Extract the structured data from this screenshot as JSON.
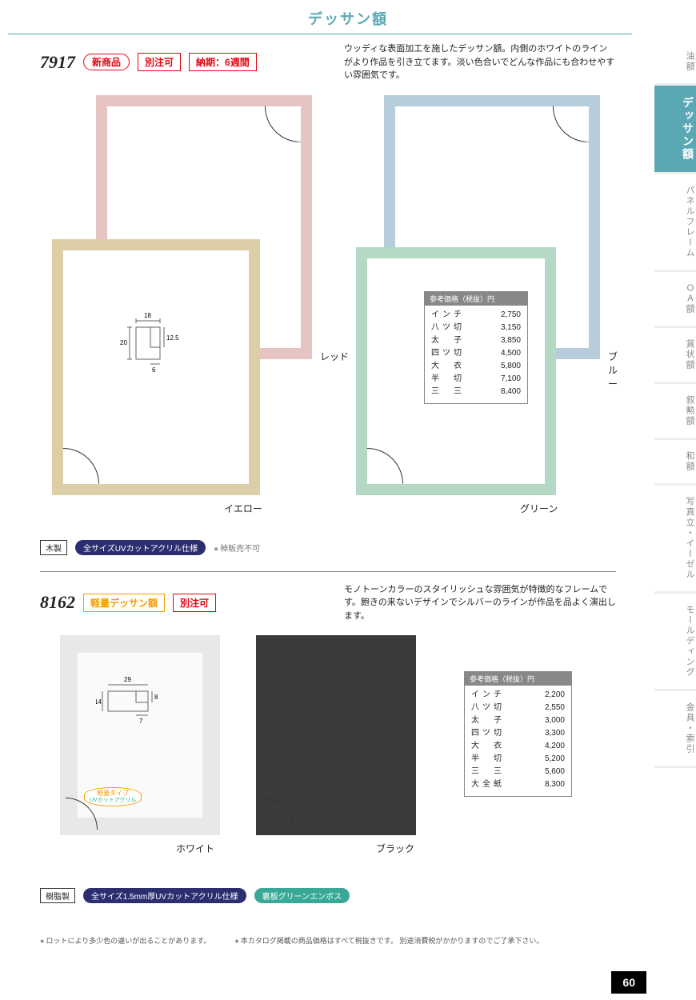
{
  "page": {
    "title": "デッサン額",
    "number": "60"
  },
  "sideTabs": [
    {
      "label": "油額",
      "active": false
    },
    {
      "label": "デッサン額",
      "active": true
    },
    {
      "label": "パネルフレーム",
      "active": false
    },
    {
      "label": "ＯＡ額",
      "active": false
    },
    {
      "label": "賞状額",
      "active": false
    },
    {
      "label": "叙勲額",
      "active": false
    },
    {
      "label": "和額",
      "active": false
    },
    {
      "label": "写真立・イーゼル",
      "active": false
    },
    {
      "label": "モールディング",
      "active": false
    },
    {
      "label": "金具・索引",
      "active": false
    }
  ],
  "product1": {
    "number": "7917",
    "badges": {
      "new": "新商品",
      "custom": "別注可",
      "leadtime": "納期：6週間"
    },
    "description": "ウッディな表面加工を施したデッサン額。内側のホワイトのラインがより作品を引き立てます。淡い色合いでどんな作品にも合わせやすい雰囲気です。",
    "frameColors": {
      "red": {
        "label": "レッド",
        "hex": "#e6c4c1",
        "border": 14
      },
      "yellow": {
        "label": "イエロー",
        "hex": "#dccfa8",
        "border": 14
      },
      "blue": {
        "label": "ブルー",
        "hex": "#b8cddb",
        "border": 14
      },
      "green": {
        "label": "グリーン",
        "hex": "#b3d9c4",
        "border": 14
      }
    },
    "profile": {
      "w": 18,
      "h": 20,
      "rabbet_w": 6,
      "rabbet_h": 12.5
    },
    "priceHeader": "参考価格（税抜）円",
    "prices": [
      {
        "size": "インチ",
        "price": "2,750"
      },
      {
        "size": "八ツ切",
        "price": "3,150"
      },
      {
        "size": "太　子",
        "price": "3,850"
      },
      {
        "size": "四ツ切",
        "price": "4,500"
      },
      {
        "size": "大　衣",
        "price": "5,800"
      },
      {
        "size": "半　切",
        "price": "7,100"
      },
      {
        "size": "三　三",
        "price": "8,400"
      }
    ],
    "specs": {
      "material": "木製",
      "acrylic": "全サイズUVカットアクリル仕様",
      "note": "棹販売不可"
    }
  },
  "product2": {
    "number": "8162",
    "badges": {
      "lightweight": "軽量デッサン額",
      "custom": "別注可"
    },
    "description": "モノトーンカラーのスタイリッシュな雰囲気が特徴的なフレームです。飽きの来ないデザインでシルバーのラインが作品を品よく演出します。",
    "frameColors": {
      "white": {
        "label": "ホワイト",
        "hex": "#e8e8e8",
        "border": 22
      },
      "black": {
        "label": "ブラック",
        "hex": "#3a3a3a",
        "border": 22
      }
    },
    "profile": {
      "w": 29,
      "h": 14,
      "rabbet_w": 7,
      "rabbet_h": 8
    },
    "lwBadge": {
      "l1": "軽量タイプ",
      "l2": "UVカットアクリル"
    },
    "priceHeader": "参考価格（税抜）円",
    "prices": [
      {
        "size": "インチ",
        "price": "2,200"
      },
      {
        "size": "八ツ切",
        "price": "2,550"
      },
      {
        "size": "太　子",
        "price": "3,000"
      },
      {
        "size": "四ツ切",
        "price": "3,300"
      },
      {
        "size": "大　衣",
        "price": "4,200"
      },
      {
        "size": "半　切",
        "price": "5,200"
      },
      {
        "size": "三　三",
        "price": "5,600"
      },
      {
        "size": "大全紙",
        "price": "8,300"
      }
    ],
    "specs": {
      "material": "樹脂製",
      "acrylic": "全サイズ1.5mm厚UVカットアクリル仕様",
      "back": "裏板グリーンエンボス"
    }
  },
  "footerNotes": [
    "ロットにより多少色の違いが出ることがあります。",
    "本カタログ掲載の商品価格はすべて税抜きです。 別途消費税がかかりますのでご了承下さい。"
  ]
}
